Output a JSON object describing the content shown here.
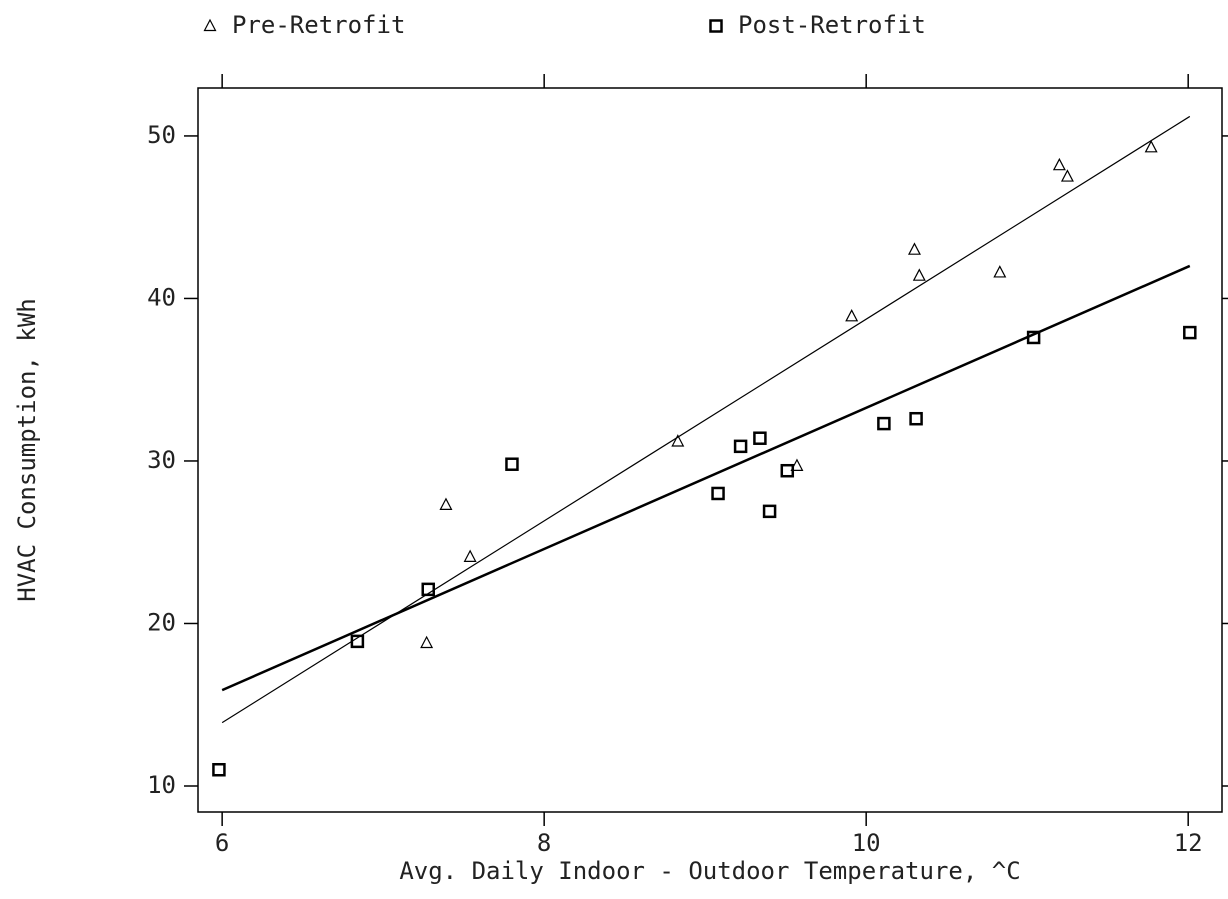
{
  "chart_data": {
    "type": "scatter",
    "xlabel": "Avg. Daily Indoor - Outdoor Temperature, ^C",
    "ylabel": "HVAC Consumption, kWh",
    "xlim": [
      5.85,
      12.21
    ],
    "ylim": [
      8.4,
      52.95
    ],
    "xticks": [
      6,
      8,
      10,
      12
    ],
    "yticks": [
      10,
      20,
      30,
      40,
      50
    ],
    "grid": false,
    "legend": "top",
    "series": [
      {
        "name": "Pre-Retrofit",
        "color": "#000000",
        "marker": "triangle",
        "x": [
          7.27,
          7.39,
          7.54,
          8.83,
          9.57,
          9.91,
          10.3,
          10.33,
          10.83,
          11.2,
          11.25,
          11.77
        ],
        "values": [
          18.8,
          27.3,
          24.1,
          31.2,
          29.7,
          38.9,
          43.0,
          41.4,
          41.6,
          48.2,
          47.5,
          49.3
        ],
        "fit": {
          "x": [
            6,
            12.01
          ],
          "values": [
            13.9,
            51.2
          ]
        }
      },
      {
        "name": "Post-Retrofit",
        "color": "#000000",
        "marker": "square",
        "x": [
          5.98,
          6.84,
          7.28,
          7.8,
          9.08,
          9.22,
          9.34,
          9.4,
          9.51,
          10.11,
          10.31,
          11.04,
          12.01
        ],
        "values": [
          11.0,
          18.9,
          22.1,
          29.8,
          28.0,
          30.9,
          31.4,
          26.9,
          29.4,
          32.3,
          32.6,
          37.6,
          37.9
        ],
        "fit": {
          "x": [
            6,
            12.01
          ],
          "values": [
            15.9,
            42.0
          ]
        }
      }
    ]
  }
}
